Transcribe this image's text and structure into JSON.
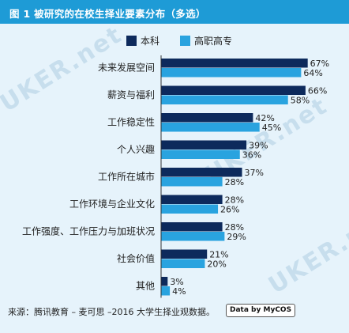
{
  "header": {
    "title": "图 1  被研究的在校生择业要素分布（多选）"
  },
  "watermark": {
    "text": "UKER.net"
  },
  "legend": [
    {
      "label": "本科",
      "color": "#0d2a5c"
    },
    {
      "label": "高职高专",
      "color": "#29a3df"
    }
  ],
  "footer": {
    "source": "来源：腾讯教育 – 麦可思 –2016 大学生择业观数据。",
    "logo_text": "Data by MyCOS"
  },
  "chart_data": {
    "type": "bar",
    "orientation": "horizontal",
    "title": "图 1  被研究的在校生择业要素分布（多选）",
    "categories": [
      "未来发展空间",
      "薪资与福利",
      "工作稳定性",
      "个人兴趣",
      "工作所在城市",
      "工作环境与企业文化",
      "工作强度、工作压力与加班状况",
      "社会价值",
      "其他"
    ],
    "series": [
      {
        "name": "本科",
        "color": "#0d2a5c",
        "values": [
          67,
          66,
          42,
          39,
          37,
          28,
          28,
          21,
          3
        ]
      },
      {
        "name": "高职高专",
        "color": "#29a3df",
        "values": [
          64,
          58,
          45,
          36,
          28,
          26,
          29,
          20,
          4
        ]
      }
    ],
    "value_suffix": "%",
    "xlim": [
      0,
      70
    ],
    "legend_position": "top"
  }
}
